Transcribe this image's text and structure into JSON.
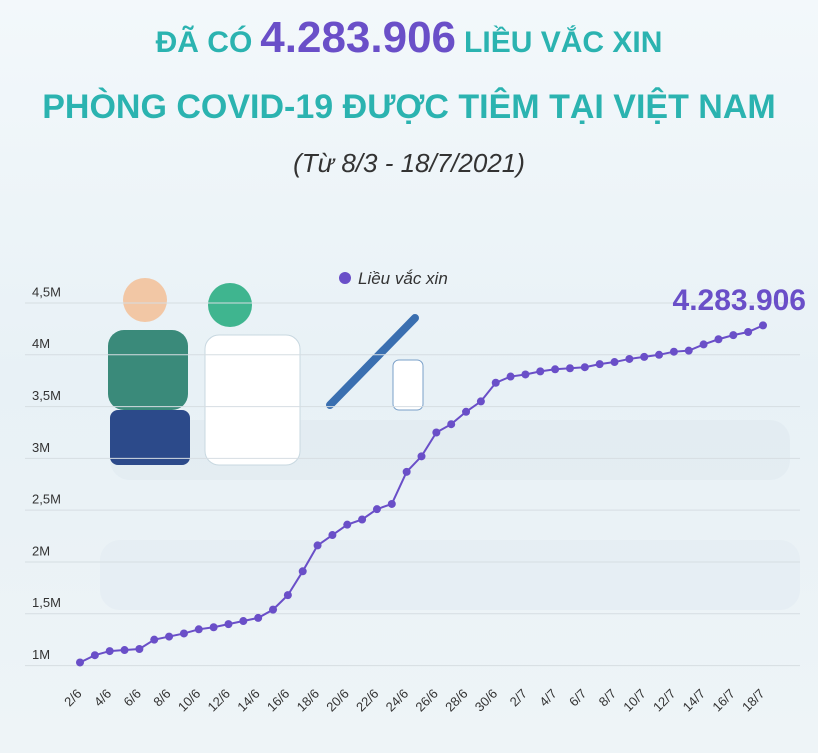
{
  "chart_data": {
    "type": "line",
    "title": [
      "ĐÃ CÓ",
      "4.283.906",
      "LIỀU VẮC XIN",
      "PHÒNG COVID-19 ĐƯỢC TIÊM TẠI VIỆT NAM"
    ],
    "subtitle": "(Từ 8/3 - 18/7/2021)",
    "annotation": "4.283.906",
    "categories": [
      "2/6",
      null,
      "4/6",
      null,
      "6/6",
      null,
      "8/6",
      null,
      "10/6",
      null,
      "12/6",
      null,
      "14/6",
      null,
      "16/6",
      null,
      "18/6",
      null,
      "20/6",
      null,
      "22/6",
      null,
      "24/6",
      null,
      "26/6",
      null,
      "28/6",
      null,
      "30/6",
      null,
      "2/7",
      null,
      "4/7",
      null,
      "6/7",
      null,
      "8/7",
      null,
      "10/7",
      null,
      "12/7",
      null,
      "14/7",
      null,
      "16/7",
      null,
      "18/7"
    ],
    "series": [
      {
        "name": "Liều vắc xin",
        "color": "#6a4fc8",
        "values": [
          1030000,
          1100000,
          1140000,
          1150000,
          1160000,
          1250000,
          1280000,
          1310000,
          1350000,
          1370000,
          1400000,
          1430000,
          1460000,
          1540000,
          1680000,
          1910000,
          2160000,
          2260000,
          2360000,
          2410000,
          2510000,
          2560000,
          2870000,
          3020000,
          3250000,
          3330000,
          3450000,
          3550000,
          3730000,
          3790000,
          3810000,
          3840000,
          3860000,
          3870000,
          3880000,
          3910000,
          3930000,
          3960000,
          3980000,
          4000000,
          4030000,
          4040000,
          4100000,
          4150000,
          4190000,
          4220000,
          4283906
        ]
      }
    ],
    "ylim": [
      880000,
      4500000
    ],
    "yticks": [
      {
        "value": 1000000,
        "label": "1M"
      },
      {
        "value": 1500000,
        "label": "1,5M"
      },
      {
        "value": 2000000,
        "label": "2M"
      },
      {
        "value": 2500000,
        "label": "2,5M"
      },
      {
        "value": 3000000,
        "label": "3M"
      },
      {
        "value": 3500000,
        "label": "3,5M"
      },
      {
        "value": 4000000,
        "label": "4M"
      },
      {
        "value": 4500000,
        "label": "4,5M"
      }
    ],
    "grid": true
  }
}
